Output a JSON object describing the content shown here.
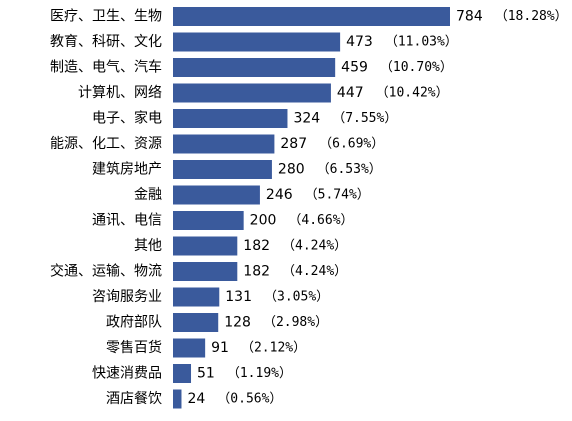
{
  "chart_data": {
    "type": "bar",
    "orientation": "horizontal",
    "bar_color": "#3A5A9C",
    "categories": [
      "医疗、卫生、生物",
      "教育、科研、文化",
      "制造、电气、汽车",
      "计算机、网络",
      "电子、家电",
      "能源、化工、资源",
      "建筑房地产",
      "金融",
      "通讯、电信",
      "其他",
      "交通、运输、物流",
      "咨询服务业",
      "政府部队",
      "零售百货",
      "快速消费品",
      "酒店餐饮"
    ],
    "values": [
      784,
      473,
      459,
      447,
      324,
      287,
      280,
      246,
      200,
      182,
      182,
      131,
      128,
      91,
      51,
      24
    ],
    "percent_labels": [
      "（18.28%）",
      "（11.03%）",
      "（10.70%）",
      "（10.42%）",
      "（7.55%）",
      "（6.69%）",
      "（6.53%）",
      "（5.74%）",
      "（4.66%）",
      "（4.24%）",
      "（4.24%）",
      "（3.05%）",
      "（2.98%）",
      "（2.12%）",
      "（1.19%）",
      "（0.56%）"
    ],
    "title": "",
    "xlabel": "",
    "ylabel": "",
    "grid": false,
    "legend": "none"
  }
}
